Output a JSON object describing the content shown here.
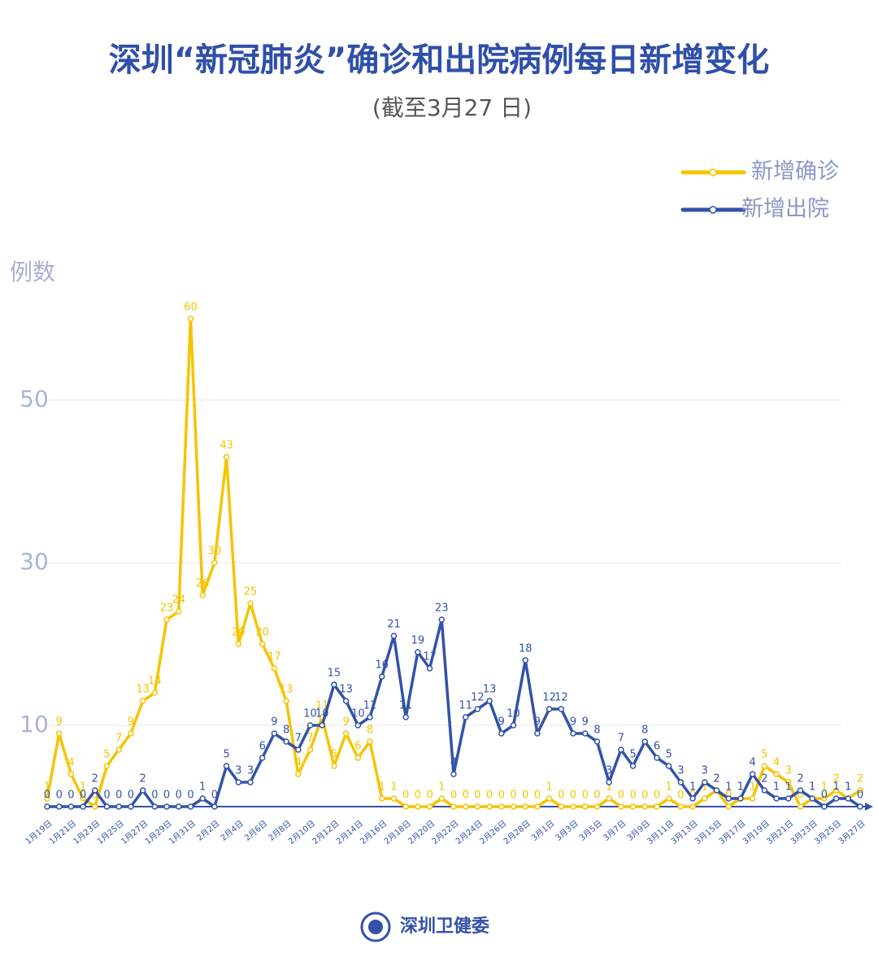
{
  "chart_data": {
    "type": "line",
    "title": "深圳“新冠肺炎”确诊和出院病例每日新增变化",
    "subtitle": "(截至3月27 日)",
    "y_label": "例数",
    "source": "深圳卫健委",
    "categories": [
      "1月19日",
      null,
      "1月21日",
      null,
      "1月23日",
      null,
      "1月25日",
      null,
      "1月27日",
      null,
      "1月29日",
      null,
      "1月31日",
      null,
      "2月2日",
      null,
      "2月4日",
      null,
      "2月6日",
      null,
      "2月8日",
      null,
      "2月10日",
      null,
      "2月12日",
      null,
      "2月14日",
      null,
      "2月16日",
      null,
      "2月18日",
      null,
      "2月20日",
      null,
      "2月22日",
      null,
      "2月24日",
      null,
      "2月26日",
      null,
      "2月28日",
      null,
      "3月1日",
      null,
      "3月3日",
      null,
      "3月5日",
      null,
      "3月7日",
      null,
      "3月9日",
      null,
      "3月11日",
      null,
      "3月13日",
      null,
      "3月15日",
      null,
      "3月17日",
      null,
      "3月19日",
      null,
      "3月21日",
      null,
      "3月23日",
      null,
      "3月25日",
      null,
      "3月27日"
    ],
    "series": [
      {
        "name": "新增确诊",
        "color": "#f5c400",
        "values": [
          1,
          9,
          4,
          1,
          0,
          5,
          7,
          9,
          13,
          14,
          23,
          24,
          60,
          26,
          30,
          43,
          20,
          25,
          20,
          17,
          13,
          4,
          7,
          11,
          5,
          9,
          6,
          8,
          1,
          1,
          0,
          0,
          0,
          1,
          0,
          0,
          0,
          0,
          0,
          0,
          0,
          0,
          1,
          0,
          0,
          0,
          0,
          1,
          0,
          0,
          0,
          0,
          1,
          0,
          0,
          1,
          2,
          0,
          1,
          1,
          5,
          4,
          3,
          0,
          1,
          1,
          2,
          1,
          2
        ]
      },
      {
        "name": "新增出院",
        "color": "#3352a8",
        "values": [
          0,
          0,
          0,
          0,
          2,
          0,
          0,
          0,
          2,
          0,
          0,
          0,
          0,
          1,
          0,
          5,
          3,
          3,
          6,
          9,
          8,
          7,
          10,
          10,
          15,
          13,
          10,
          11,
          16,
          21,
          11,
          19,
          17,
          23,
          4,
          11,
          12,
          13,
          9,
          10,
          18,
          9,
          12,
          12,
          9,
          9,
          8,
          3,
          7,
          5,
          8,
          6,
          5,
          3,
          1,
          3,
          2,
          1,
          1,
          4,
          2,
          1,
          1,
          2,
          1,
          0,
          1,
          1,
          0
        ]
      }
    ],
    "ylim": [
      0,
      62
    ],
    "yticks": [
      10,
      30,
      50
    ],
    "grid": true,
    "legend": "top-right",
    "data_labels": true
  }
}
